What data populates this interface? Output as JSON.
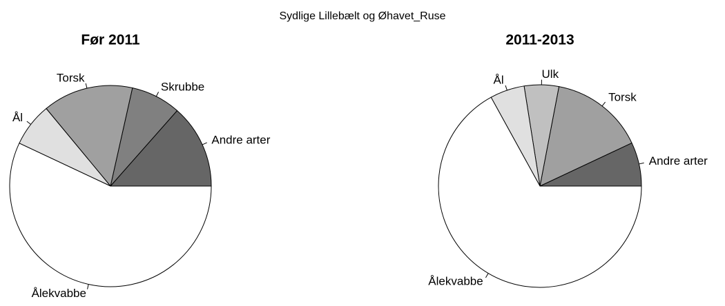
{
  "title": "Sydlige Lillebælt og Øhavet_Ruse",
  "chart_data": [
    {
      "type": "pie",
      "title": "Før 2011",
      "categories": [
        "Andre arter",
        "Skrubbe",
        "Torsk",
        "Ål",
        "Ålekvabbe"
      ],
      "values": [
        13.5,
        8,
        14.5,
        7,
        57
      ],
      "colors": [
        "#666666",
        "#808080",
        "#a0a0a0",
        "#e0e0e0",
        "#ffffff"
      ]
    },
    {
      "type": "pie",
      "title": "2011-2013",
      "categories": [
        "Andre arter",
        "Torsk",
        "Ulk",
        "Ål",
        "Ålekvabbe"
      ],
      "values": [
        7,
        15,
        5.5,
        5.5,
        67
      ],
      "colors": [
        "#666666",
        "#a0a0a0",
        "#c0c0c0",
        "#e0e0e0",
        "#ffffff"
      ]
    }
  ]
}
